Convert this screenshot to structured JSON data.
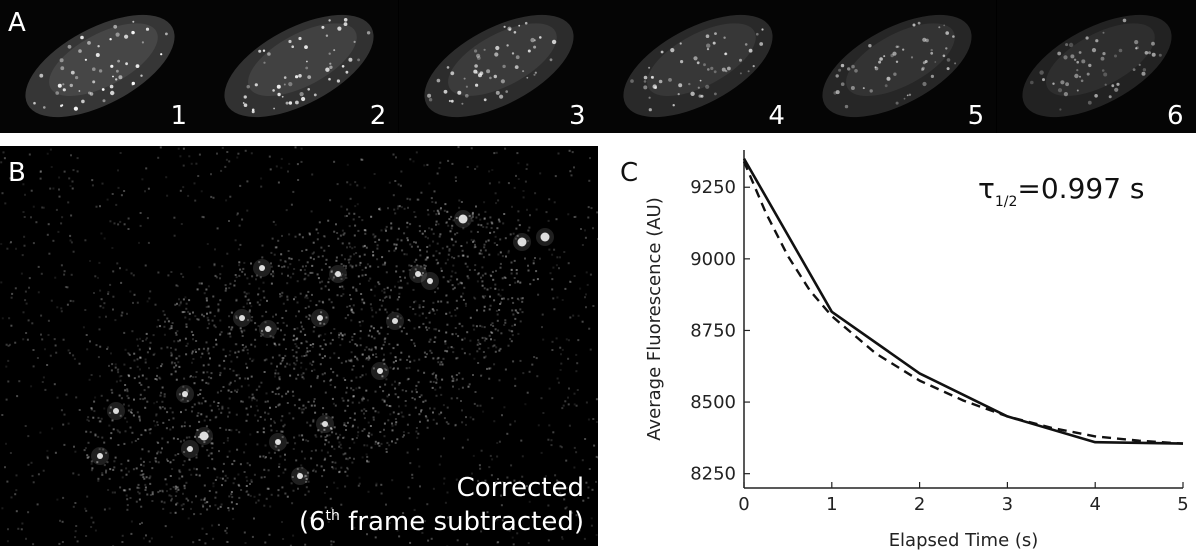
{
  "panel_a": {
    "letter": "A",
    "frames": [
      {
        "label": "1",
        "brightness": 1.0
      },
      {
        "label": "2",
        "brightness": 0.9
      },
      {
        "label": "3",
        "brightness": 0.8
      },
      {
        "label": "4",
        "brightness": 0.72
      },
      {
        "label": "5",
        "brightness": 0.66
      },
      {
        "label": "6",
        "brightness": 0.6
      }
    ]
  },
  "panel_b": {
    "letter": "B",
    "caption_line1": "Corrected",
    "caption_line2_prefix": "(6",
    "caption_line2_sup": "th",
    "caption_line2_suffix": " frame subtracted)"
  },
  "panel_c": {
    "letter": "C",
    "annotation_symbol": "τ",
    "annotation_sub": "1/2",
    "annotation_value": "=0.997 s"
  },
  "chart_data": {
    "type": "line",
    "xlabel": "Elapsed Time (s)",
    "ylabel": "Average Fluorescence (AU)",
    "xlim": [
      0,
      5
    ],
    "ylim": [
      8200,
      9380
    ],
    "xticks": [
      "0",
      "1",
      "2",
      "3",
      "4",
      "5"
    ],
    "yticks": [
      "8250",
      "8500",
      "8750",
      "9000",
      "9250"
    ],
    "grid": false,
    "series": [
      {
        "style": "solid",
        "x": [
          0,
          1,
          2,
          3,
          4,
          5
        ],
        "y": [
          9350,
          8815,
          8600,
          8450,
          8360,
          8355
        ]
      },
      {
        "style": "dashed",
        "x": [
          0,
          0.25,
          0.5,
          0.75,
          1,
          1.5,
          2,
          2.5,
          3,
          3.5,
          4,
          4.5,
          5
        ],
        "y": [
          9340,
          9160,
          9010,
          8890,
          8800,
          8670,
          8575,
          8505,
          8450,
          8410,
          8380,
          8365,
          8355
        ]
      }
    ]
  }
}
